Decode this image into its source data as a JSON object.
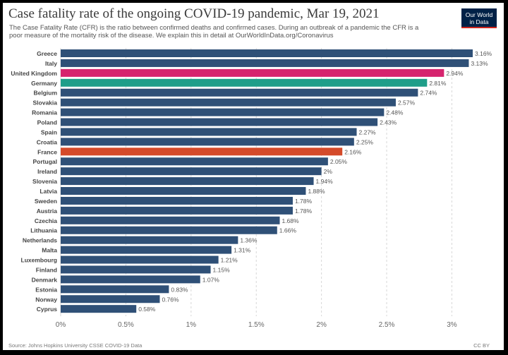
{
  "header": {
    "title": "Case fatality rate of the ongoing COVID-19 pandemic, Mar 19, 2021",
    "subtitle": "The Case Fatality Rate (CFR) is the ratio between confirmed deaths and confirmed cases. During an outbreak of a pandemic the CFR is a poor measure of the mortality risk of the disease. We explain this in detail at OurWorldInData.org/Coronavirus"
  },
  "logo": {
    "line1": "Our World",
    "line2": "in Data",
    "bg": "#002147",
    "accent": "#ce261e"
  },
  "footer": {
    "source": "Source: Johns Hopkins University CSSE COVID-19 Data",
    "license": "CC BY"
  },
  "colors": {
    "default_bar": "#2f5077",
    "highlights": {
      "United Kingdom": "#d6246e",
      "Germany": "#1f9e89",
      "France": "#d44a2a"
    },
    "grid": "#d7d7d7",
    "label": "#444444",
    "value": "#555555"
  },
  "chart_data": {
    "type": "bar",
    "orientation": "horizontal",
    "title": "Case fatality rate of the ongoing COVID-19 pandemic, Mar 19, 2021",
    "xlim": [
      0,
      3.16
    ],
    "xticks": [
      0,
      0.5,
      1,
      1.5,
      2,
      2.5,
      3
    ],
    "xtick_labels": [
      "0%",
      "0.5%",
      "1%",
      "1.5%",
      "2%",
      "2.5%",
      "3%"
    ],
    "grid": true,
    "categories": [
      "Greece",
      "Italy",
      "United Kingdom",
      "Germany",
      "Belgium",
      "Slovakia",
      "Romania",
      "Poland",
      "Spain",
      "Croatia",
      "France",
      "Portugal",
      "Ireland",
      "Slovenia",
      "Latvia",
      "Sweden",
      "Austria",
      "Czechia",
      "Lithuania",
      "Netherlands",
      "Malta",
      "Luxembourg",
      "Finland",
      "Denmark",
      "Estonia",
      "Norway",
      "Cyprus"
    ],
    "values": [
      3.16,
      3.13,
      2.94,
      2.81,
      2.74,
      2.57,
      2.48,
      2.43,
      2.27,
      2.25,
      2.16,
      2.05,
      2,
      1.94,
      1.88,
      1.78,
      1.78,
      1.68,
      1.66,
      1.36,
      1.31,
      1.21,
      1.15,
      1.07,
      0.83,
      0.76,
      0.58
    ],
    "value_labels": [
      "3.16%",
      "3.13%",
      "2.94%",
      "2.81%",
      "2.74%",
      "2.57%",
      "2.48%",
      "2.43%",
      "2.27%",
      "2.25%",
      "2.16%",
      "2.05%",
      "2%",
      "1.94%",
      "1.88%",
      "1.78%",
      "1.78%",
      "1.68%",
      "1.66%",
      "1.36%",
      "1.31%",
      "1.21%",
      "1.15%",
      "1.07%",
      "0.83%",
      "0.76%",
      "0.58%"
    ]
  }
}
